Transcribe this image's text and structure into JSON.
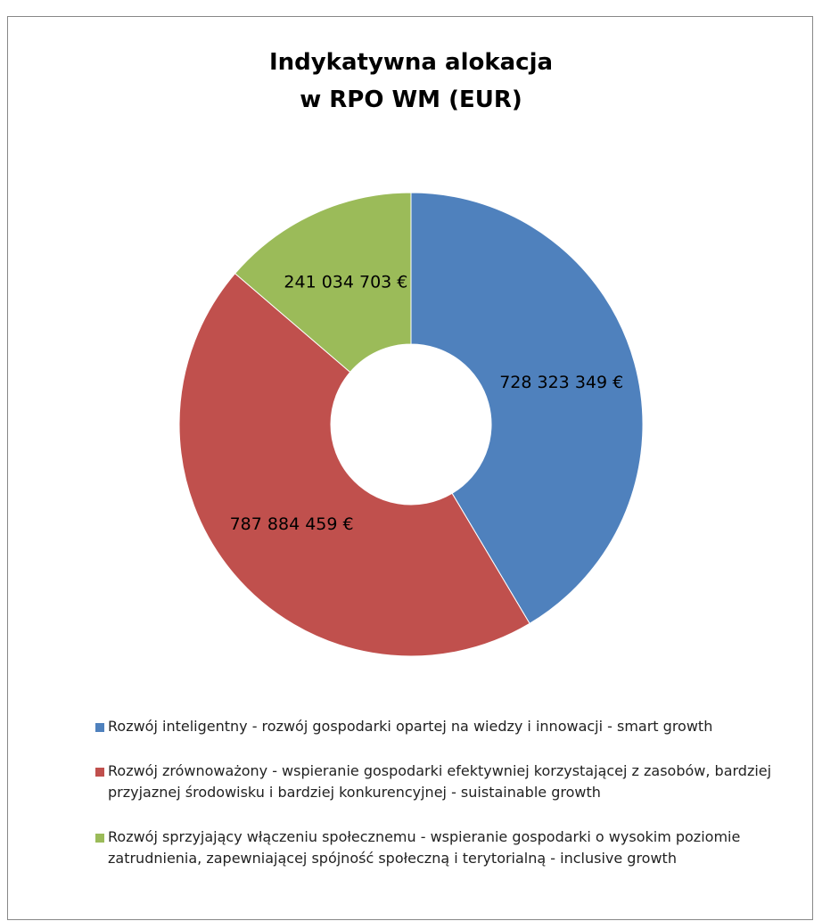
{
  "chart_data": {
    "type": "donut",
    "title": "Indykatywna alokacja w RPO WM (EUR)",
    "categories": [
      "Rozwój inteligentny  - rozwój gospodarki opartej na wiedzy i innowacji - smart growth",
      "Rozwój zrównoważony - wspieranie gospodarki efektywniej korzystającej z zasobów, bardziej przyjaznej środowisku i bardziej konkurencyjnej - suistainable growth",
      "Rozwój sprzyjający włączeniu społecznemu - wspieranie gospodarki o wysokim poziomie zatrudnienia, zapewniającej spójność społeczną i terytorialną - inclusive growth"
    ],
    "values": [
      728323349,
      787884459,
      241034703
    ],
    "value_labels": [
      "728 323 349 €",
      "787 884 459 €",
      "241 034 703 €"
    ],
    "colors": [
      "#4f81bd",
      "#c0504d",
      "#9bbb59"
    ],
    "legend": "bottom"
  }
}
